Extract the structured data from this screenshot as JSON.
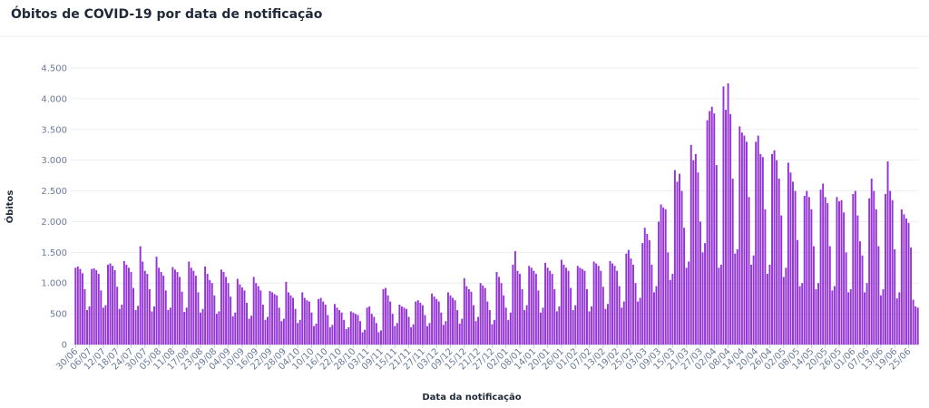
{
  "chart_data": {
    "type": "bar",
    "title": "Óbitos de COVID-19 por data de notificação",
    "ylabel": "Óbitos",
    "xlabel": "Data da notificação",
    "color": "#9434d6",
    "grid": true,
    "ylim": [
      0,
      4500
    ],
    "yticks": [
      0,
      500,
      {
        "value": 1000,
        "label": "1.000"
      },
      {
        "value": 1500,
        "label": "1.500"
      },
      {
        "value": 2000,
        "label": "2.000"
      },
      {
        "value": 2500,
        "label": "2.500"
      },
      {
        "value": 3000,
        "label": "3.000"
      },
      {
        "value": 3500,
        "label": "3.500"
      },
      {
        "value": 4000,
        "label": "4.000"
      },
      {
        "value": 4500,
        "label": "4.500"
      }
    ],
    "categories": [
      "30/06",
      null,
      null,
      null,
      null,
      null,
      "06/07",
      null,
      null,
      null,
      null,
      null,
      "12/07",
      null,
      null,
      null,
      null,
      null,
      "18/07",
      null,
      null,
      null,
      null,
      null,
      "24/07",
      null,
      null,
      null,
      null,
      null,
      "30/07",
      null,
      null,
      null,
      null,
      null,
      "05/08",
      null,
      null,
      null,
      null,
      null,
      "11/08",
      null,
      null,
      null,
      null,
      null,
      "17/08",
      null,
      null,
      null,
      null,
      null,
      "23/08",
      null,
      null,
      null,
      null,
      null,
      "29/08",
      null,
      null,
      null,
      null,
      null,
      "04/09",
      null,
      null,
      null,
      null,
      null,
      "10/09",
      null,
      null,
      null,
      null,
      null,
      "16/09",
      null,
      null,
      null,
      null,
      null,
      "22/09",
      null,
      null,
      null,
      null,
      null,
      "28/09",
      null,
      null,
      null,
      null,
      null,
      "04/10",
      null,
      null,
      null,
      null,
      null,
      "10/10",
      null,
      null,
      null,
      null,
      null,
      "16/10",
      null,
      null,
      null,
      null,
      null,
      "22/10",
      null,
      null,
      null,
      null,
      null,
      "28/10",
      null,
      null,
      null,
      null,
      null,
      "03/11",
      null,
      null,
      null,
      null,
      null,
      "09/11",
      null,
      null,
      null,
      null,
      null,
      "15/11",
      null,
      null,
      null,
      null,
      null,
      "21/11",
      null,
      null,
      null,
      null,
      null,
      "27/11",
      null,
      null,
      null,
      null,
      null,
      "03/12",
      null,
      null,
      null,
      null,
      null,
      "09/12",
      null,
      null,
      null,
      null,
      null,
      "15/12",
      null,
      null,
      null,
      null,
      null,
      "21/12",
      null,
      null,
      null,
      null,
      null,
      "27/12",
      null,
      null,
      null,
      null,
      null,
      "02/01",
      null,
      null,
      null,
      null,
      null,
      "08/01",
      null,
      null,
      null,
      null,
      null,
      "14/01",
      null,
      null,
      null,
      null,
      null,
      "20/01",
      null,
      null,
      null,
      null,
      null,
      "26/01",
      null,
      null,
      null,
      null,
      null,
      "01/02",
      null,
      null,
      null,
      null,
      null,
      "07/02",
      null,
      null,
      null,
      null,
      null,
      "13/02",
      null,
      null,
      null,
      null,
      null,
      "19/02",
      null,
      null,
      null,
      null,
      null,
      "25/02",
      null,
      null,
      null,
      null,
      null,
      "03/03",
      null,
      null,
      null,
      null,
      null,
      "09/03",
      null,
      null,
      null,
      null,
      null,
      "15/03",
      null,
      null,
      null,
      null,
      null,
      "21/03",
      null,
      null,
      null,
      null,
      null,
      "27/03",
      null,
      null,
      null,
      null,
      null,
      "02/04",
      null,
      null,
      null,
      null,
      null,
      "08/04",
      null,
      null,
      null,
      null,
      null,
      "14/04",
      null,
      null,
      null,
      null,
      null,
      "20/04",
      null,
      null,
      null,
      null,
      null,
      "26/04",
      null,
      null,
      null,
      null,
      null,
      "02/05",
      null,
      null,
      null,
      null,
      null,
      "08/05",
      null,
      null,
      null,
      null,
      null,
      "14/05",
      null,
      null,
      null,
      null,
      null,
      "20/05",
      null,
      null,
      null,
      null,
      null,
      "26/05",
      null,
      null,
      null,
      null,
      null,
      "01/06",
      null,
      null,
      null,
      null,
      null,
      "07/06",
      null,
      null,
      null,
      null,
      null,
      "13/06",
      null,
      null,
      null,
      null,
      null,
      "19/06",
      null,
      null,
      null,
      null,
      null,
      "25/06",
      null,
      null,
      null,
      null
    ],
    "values": [
      1250,
      1270,
      1230,
      1160,
      900,
      560,
      620,
      1230,
      1240,
      1210,
      1150,
      880,
      600,
      640,
      1300,
      1320,
      1280,
      1210,
      940,
      580,
      650,
      1360,
      1300,
      1250,
      1180,
      920,
      560,
      630,
      1600,
      1350,
      1200,
      1150,
      900,
      540,
      620,
      1430,
      1250,
      1180,
      1120,
      880,
      560,
      600,
      1260,
      1220,
      1180,
      1100,
      860,
      530,
      600,
      1350,
      1250,
      1200,
      1120,
      850,
      520,
      580,
      1270,
      1150,
      1050,
      1000,
      800,
      500,
      540,
      1220,
      1180,
      1100,
      1000,
      780,
      460,
      520,
      1070,
      980,
      930,
      880,
      680,
      420,
      470,
      1100,
      1000,
      950,
      880,
      650,
      400,
      450,
      870,
      850,
      820,
      800,
      600,
      380,
      420,
      1020,
      850,
      800,
      760,
      580,
      350,
      400,
      850,
      760,
      720,
      700,
      520,
      300,
      340,
      740,
      760,
      700,
      650,
      480,
      280,
      320,
      660,
      600,
      560,
      520,
      400,
      250,
      280,
      540,
      520,
      500,
      480,
      380,
      200,
      240,
      600,
      620,
      500,
      450,
      350,
      200,
      230,
      900,
      920,
      800,
      700,
      500,
      300,
      350,
      650,
      620,
      600,
      580,
      450,
      280,
      330,
      700,
      720,
      680,
      640,
      480,
      300,
      350,
      830,
      780,
      740,
      700,
      520,
      320,
      380,
      850,
      800,
      760,
      720,
      560,
      340,
      420,
      1080,
      950,
      900,
      860,
      640,
      380,
      450,
      1000,
      960,
      920,
      700,
      560,
      330,
      400,
      1180,
      1100,
      1000,
      800,
      600,
      400,
      520,
      1300,
      1520,
      1200,
      1150,
      900,
      560,
      640,
      1280,
      1250,
      1200,
      1150,
      880,
      520,
      600,
      1330,
      1250,
      1200,
      1150,
      900,
      540,
      620,
      1380,
      1300,
      1250,
      1200,
      920,
      560,
      640,
      1280,
      1250,
      1230,
      1200,
      900,
      540,
      620,
      1350,
      1320,
      1280,
      1200,
      940,
      580,
      660,
      1360,
      1320,
      1280,
      1200,
      950,
      600,
      700,
      1480,
      1540,
      1400,
      1300,
      1000,
      700,
      760,
      1650,
      1900,
      1800,
      1700,
      1300,
      850,
      950,
      2000,
      2280,
      2230,
      2200,
      1500,
      1050,
      1150,
      2840,
      2650,
      2780,
      2500,
      1900,
      1250,
      1350,
      3250,
      3000,
      3100,
      2800,
      2000,
      1500,
      1650,
      3650,
      3800,
      3870,
      3760,
      2920,
      1250,
      1300,
      4200,
      3820,
      4250,
      3750,
      2700,
      1480,
      1550,
      3550,
      3450,
      3400,
      3300,
      2400,
      1300,
      1450,
      3300,
      3400,
      3100,
      3050,
      2200,
      1150,
      1300,
      3100,
      3160,
      3000,
      2700,
      2100,
      1100,
      1250,
      2960,
      2800,
      2650,
      2500,
      1700,
      950,
      1000,
      2420,
      2500,
      2400,
      2200,
      1600,
      900,
      1000,
      2520,
      2620,
      2400,
      2300,
      1600,
      880,
      950,
      2400,
      2330,
      2350,
      2150,
      1500,
      850,
      900,
      2450,
      2500,
      2100,
      1680,
      1450,
      850,
      1000,
      2380,
      2700,
      2500,
      2200,
      1600,
      800,
      900,
      2450,
      2980,
      2500,
      2350,
      1550,
      750,
      850,
      2200,
      2120,
      2050,
      1980,
      1580,
      730,
      620,
      600
    ]
  }
}
